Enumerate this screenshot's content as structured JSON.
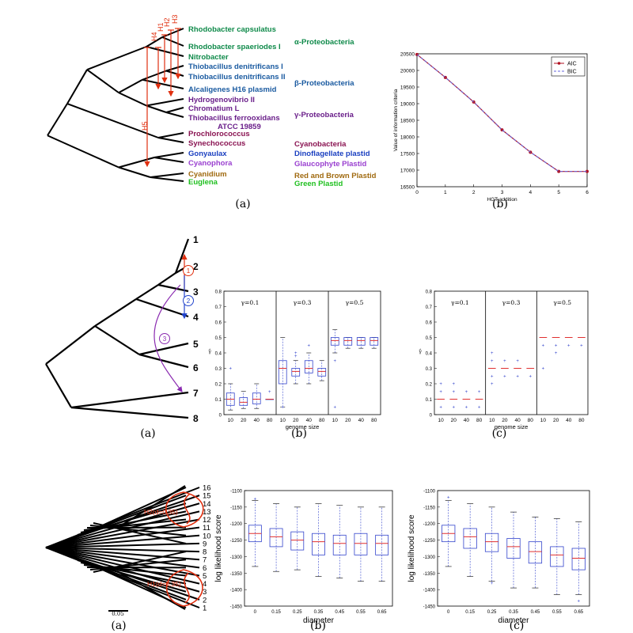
{
  "captions": {
    "row1_a": "(a)",
    "row1_b": "(b)",
    "row2_a": "(a)",
    "row2_b": "(b)",
    "row2_c": "(c)",
    "row3_a": "(a)",
    "row3_b": "(b)",
    "row3_c": "(c)"
  },
  "colors": {
    "alpha": "#0f8a4a",
    "beta": "#1a5aa0",
    "gamma": "#6a1f8a",
    "cyano": "#8a1452",
    "dino": "#1a3fc0",
    "glauco": "#9a40d0",
    "red_brown": "#a06a10",
    "green": "#20c020",
    "hgt": "#e03010",
    "box": "#3344cc",
    "median": "#e03030",
    "blue_arrow": "#2244cc",
    "purple_arrow": "#8a2ab0"
  },
  "tree1": {
    "taxa": [
      {
        "name": "Rhodobacter capsulatus",
        "color": "alpha"
      },
      {
        "name": "Rhodobacter spaeriodes I",
        "color": "alpha"
      },
      {
        "name": "Nitrobacter",
        "color": "alpha"
      },
      {
        "name": "Thiobacillus denitrificans I",
        "color": "beta"
      },
      {
        "name": "Thiobacillus denitrificans II",
        "color": "beta"
      },
      {
        "name": "Alcaligenes H16 plasmid",
        "color": "beta"
      },
      {
        "name": "Hydrogenovibrio II",
        "color": "gamma"
      },
      {
        "name": "Chromatium L",
        "color": "gamma"
      },
      {
        "name": "Thiobacillus ferrooxidans",
        "color": "gamma"
      },
      {
        "name": "ATCC 19859",
        "color": "gamma"
      },
      {
        "name": "Prochlorococcus",
        "color": "cyano"
      },
      {
        "name": "Synechococcus",
        "color": "cyano"
      },
      {
        "name": "Gonyaulax",
        "color": "dino"
      },
      {
        "name": "Cyanophora",
        "color": "glauco"
      },
      {
        "name": "Cyanidium",
        "color": "red_brown"
      },
      {
        "name": "Euglena",
        "color": "green"
      }
    ],
    "groups": [
      {
        "name": "α-Proteobacteria",
        "color": "alpha"
      },
      {
        "name": "β-Proteobacteria",
        "color": "beta"
      },
      {
        "name": "γ-Proteobacteria",
        "color": "gamma"
      },
      {
        "name": "Cyanobacteria",
        "color": "cyano"
      },
      {
        "name": "Dinoflagellate plastid",
        "color": "dino"
      },
      {
        "name": "Glaucophyte Plastid",
        "color": "glauco"
      },
      {
        "name": "Red and Brown Plastid",
        "color": "red_brown"
      },
      {
        "name": "Green Plastid",
        "color": "green"
      }
    ],
    "hgt_labels": [
      "H1",
      "H2",
      "H3",
      "H4",
      "H5"
    ]
  },
  "tree2": {
    "leaves": [
      "1",
      "2",
      "3",
      "4",
      "5",
      "6",
      "7",
      "8"
    ],
    "transfers": [
      "1",
      "2",
      "3"
    ]
  },
  "tree3": {
    "leaves": [
      "1",
      "2",
      "3",
      "4",
      "5",
      "6",
      "7",
      "8",
      "9",
      "10",
      "11",
      "12",
      "13",
      "14",
      "15",
      "16"
    ],
    "annotations": [
      "H2(d=0.35)",
      "H1(d=0.35)"
    ],
    "scale_label": "0.05"
  },
  "chart_data": [
    {
      "type": "line",
      "id": "info-criteria",
      "x": [
        0,
        1,
        2,
        3,
        4,
        5,
        6
      ],
      "series": [
        {
          "name": "AIC",
          "values": [
            20480,
            19790,
            19050,
            18210,
            17540,
            16960,
            16960
          ],
          "color": "#b01020"
        },
        {
          "name": "BIC",
          "values": [
            20480,
            19790,
            19050,
            18210,
            17540,
            16960,
            16960
          ],
          "color": "#6666dd"
        }
      ],
      "xlabel": "HGT addition",
      "ylabel": "Value of information criteria",
      "xlim": [
        0,
        6
      ],
      "ylim": [
        16500,
        20500
      ],
      "yticks": [
        16500,
        17000,
        17500,
        18000,
        18500,
        19000,
        19500,
        20000,
        20500
      ],
      "xticks": [
        0,
        1,
        2,
        3,
        4,
        5,
        6
      ],
      "legend": "top-right"
    },
    {
      "type": "box",
      "id": "gamma-box",
      "panels": [
        "γ=0.1",
        "γ=0.3",
        "γ=0.5"
      ],
      "categories": [
        10,
        20,
        40,
        80
      ],
      "xlabel": "genome size",
      "ylabel": "γ̂",
      "ylim": [
        0,
        0.8
      ],
      "yticks": [
        0,
        0.1,
        0.2,
        0.3,
        0.4,
        0.5,
        0.6,
        0.7,
        0.8
      ],
      "boxes": [
        [
          {
            "min": 0.03,
            "q1": 0.06,
            "med": 0.1,
            "q3": 0.14,
            "max": 0.2,
            "out": [
              0.3
            ]
          },
          {
            "min": 0.04,
            "q1": 0.06,
            "med": 0.08,
            "q3": 0.11,
            "max": 0.15,
            "out": []
          },
          {
            "min": 0.04,
            "q1": 0.07,
            "med": 0.1,
            "q3": 0.14,
            "max": 0.2,
            "out": []
          },
          {
            "min": 0.1,
            "q1": 0.1,
            "med": 0.1,
            "q3": 0.1,
            "max": 0.1,
            "out": [
              0.15
            ]
          }
        ],
        [
          {
            "min": 0.05,
            "q1": 0.2,
            "med": 0.3,
            "q3": 0.35,
            "max": 0.5,
            "out": [
              0.05
            ]
          },
          {
            "min": 0.2,
            "q1": 0.25,
            "med": 0.28,
            "q3": 0.3,
            "max": 0.35,
            "out": [
              0.38,
              0.4
            ]
          },
          {
            "min": 0.2,
            "q1": 0.27,
            "med": 0.3,
            "q3": 0.35,
            "max": 0.4,
            "out": [
              0.45
            ]
          },
          {
            "min": 0.22,
            "q1": 0.25,
            "med": 0.28,
            "q3": 0.3,
            "max": 0.35,
            "out": []
          }
        ],
        [
          {
            "min": 0.4,
            "q1": 0.45,
            "med": 0.48,
            "q3": 0.5,
            "max": 0.55,
            "out": [
              0.05,
              0.35
            ]
          },
          {
            "min": 0.43,
            "q1": 0.45,
            "med": 0.48,
            "q3": 0.5,
            "max": 0.5,
            "out": []
          },
          {
            "min": 0.43,
            "q1": 0.45,
            "med": 0.48,
            "q3": 0.5,
            "max": 0.5,
            "out": []
          },
          {
            "min": 0.43,
            "q1": 0.45,
            "med": 0.48,
            "q3": 0.5,
            "max": 0.5,
            "out": []
          }
        ]
      ]
    },
    {
      "type": "box",
      "id": "gamma-flat",
      "panels": [
        "γ=0.1",
        "γ=0.3",
        "γ=0.5"
      ],
      "categories": [
        10,
        20,
        40,
        80
      ],
      "xlabel": "genome size",
      "ylabel": "γ̂",
      "ylim": [
        0,
        0.8
      ],
      "yticks": [
        0,
        0.1,
        0.2,
        0.3,
        0.4,
        0.5,
        0.6,
        0.7,
        0.8
      ],
      "boxes": [
        [
          {
            "med": 0.1,
            "out": [
              0.05,
              0.15,
              0.2
            ]
          },
          {
            "med": 0.1,
            "out": [
              0.05,
              0.15,
              0.2
            ]
          },
          {
            "med": 0.1,
            "out": [
              0.05,
              0.15
            ]
          },
          {
            "med": 0.1,
            "out": [
              0.05,
              0.15
            ]
          }
        ],
        [
          {
            "med": 0.3,
            "out": [
              0.2,
              0.25,
              0.35,
              0.4
            ]
          },
          {
            "med": 0.3,
            "out": [
              0.25,
              0.35
            ]
          },
          {
            "med": 0.3,
            "out": [
              0.25,
              0.35
            ]
          },
          {
            "med": 0.3,
            "out": [
              0.25
            ]
          }
        ],
        [
          {
            "med": 0.5,
            "out": [
              0.3,
              0.45
            ]
          },
          {
            "med": 0.5,
            "out": [
              0.4,
              0.45
            ]
          },
          {
            "med": 0.5,
            "out": [
              0.45
            ]
          },
          {
            "med": 0.5,
            "out": [
              0.45
            ]
          }
        ]
      ]
    },
    {
      "type": "box",
      "id": "loglik-b",
      "categories": [
        "0",
        "0.15",
        "0.25",
        "0.35",
        "0.45",
        "0.55",
        "0.65"
      ],
      "xlabel": "diameter",
      "ylabel": "log likelihood score",
      "ylim": [
        -1450,
        -1100
      ],
      "yticks": [
        -1100,
        -1150,
        -1200,
        -1250,
        -1300,
        -1350,
        -1400,
        -1450
      ],
      "boxes": [
        {
          "min": -1330,
          "q1": -1255,
          "med": -1230,
          "q3": -1205,
          "max": -1130,
          "out": [
            -1125
          ]
        },
        {
          "min": -1345,
          "q1": -1270,
          "med": -1240,
          "q3": -1215,
          "max": -1140,
          "out": []
        },
        {
          "min": -1340,
          "q1": -1280,
          "med": -1250,
          "q3": -1225,
          "max": -1150,
          "out": []
        },
        {
          "min": -1360,
          "q1": -1295,
          "med": -1255,
          "q3": -1230,
          "max": -1140,
          "out": []
        },
        {
          "min": -1365,
          "q1": -1295,
          "med": -1260,
          "q3": -1235,
          "max": -1145,
          "out": []
        },
        {
          "min": -1375,
          "q1": -1295,
          "med": -1260,
          "q3": -1230,
          "max": -1150,
          "out": []
        },
        {
          "min": -1375,
          "q1": -1295,
          "med": -1260,
          "q3": -1235,
          "max": -1150,
          "out": []
        }
      ]
    },
    {
      "type": "box",
      "id": "loglik-c",
      "categories": [
        "0",
        "0.15",
        "0.25",
        "0.35",
        "0.45",
        "0.55",
        "0.65"
      ],
      "xlabel": "diameter",
      "ylabel": "log likelihood score",
      "ylim": [
        -1450,
        -1100
      ],
      "yticks": [
        -1100,
        -1150,
        -1200,
        -1250,
        -1300,
        -1350,
        -1400,
        -1450
      ],
      "boxes": [
        {
          "min": -1330,
          "q1": -1255,
          "med": -1230,
          "q3": -1205,
          "max": -1130,
          "out": [
            -1120
          ]
        },
        {
          "min": -1360,
          "q1": -1275,
          "med": -1240,
          "q3": -1215,
          "max": -1140,
          "out": []
        },
        {
          "min": -1375,
          "q1": -1285,
          "med": -1255,
          "q3": -1230,
          "max": -1150,
          "out": [
            -1380
          ]
        },
        {
          "min": -1395,
          "q1": -1305,
          "med": -1270,
          "q3": -1245,
          "max": -1165,
          "out": []
        },
        {
          "min": -1395,
          "q1": -1320,
          "med": -1285,
          "q3": -1255,
          "max": -1180,
          "out": []
        },
        {
          "min": -1415,
          "q1": -1330,
          "med": -1295,
          "q3": -1270,
          "max": -1185,
          "out": []
        },
        {
          "min": -1415,
          "q1": -1340,
          "med": -1305,
          "q3": -1275,
          "max": -1195,
          "out": [
            -1435
          ]
        }
      ]
    }
  ]
}
